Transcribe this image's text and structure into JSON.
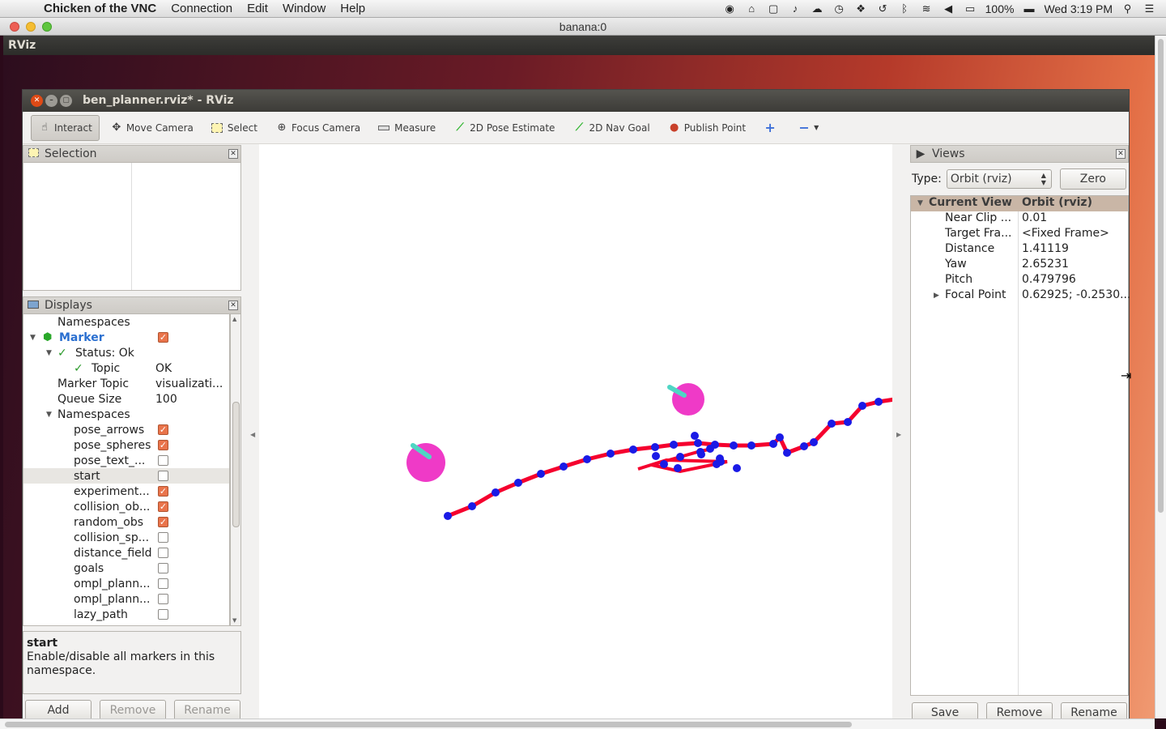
{
  "mac_menu": {
    "app_name": "Chicken of the VNC",
    "items": [
      "Connection",
      "Edit",
      "Window",
      "Help"
    ],
    "battery": "100%",
    "clock": "Wed 3:19 PM"
  },
  "vnc_window": {
    "title": "banana:0"
  },
  "desktop_panel": {
    "label": "RViz"
  },
  "rviz": {
    "title": "ben_planner.rviz* - RViz",
    "toolbar": [
      {
        "label": "Interact",
        "icon": "hand-icon",
        "active": true
      },
      {
        "label": "Move Camera",
        "icon": "move-camera-icon"
      },
      {
        "label": "Select",
        "icon": "select-icon"
      },
      {
        "label": "Focus Camera",
        "icon": "focus-camera-icon"
      },
      {
        "label": "Measure",
        "icon": "ruler-icon"
      },
      {
        "label": "2D Pose Estimate",
        "icon": "pose-estimate-icon"
      },
      {
        "label": "2D Nav Goal",
        "icon": "nav-goal-icon"
      },
      {
        "label": "Publish Point",
        "icon": "map-pin-icon"
      }
    ],
    "selection_panel": {
      "title": "Selection"
    },
    "displays_panel": {
      "title": "Displays",
      "rows": {
        "r0": {
          "name": "Namespaces"
        },
        "r1": {
          "name": "Marker"
        },
        "r2": {
          "name": "Status: Ok"
        },
        "r3": {
          "name": "Topic",
          "value": "OK"
        },
        "r4": {
          "name": "Marker Topic",
          "value": "visualizati..."
        },
        "r5": {
          "name": "Queue Size",
          "value": "100"
        },
        "r6": {
          "name": "Namespaces"
        },
        "r7": {
          "name": "pose_arrows"
        },
        "r8": {
          "name": "pose_spheres"
        },
        "r9": {
          "name": "pose_text_..."
        },
        "r10": {
          "name": "start"
        },
        "r11": {
          "name": "experiment..."
        },
        "r12": {
          "name": "collision_ob..."
        },
        "r13": {
          "name": "random_obs"
        },
        "r14": {
          "name": "collision_sp..."
        },
        "r15": {
          "name": "distance_field"
        },
        "r16": {
          "name": "goals"
        },
        "r17": {
          "name": "ompl_plann..."
        },
        "r18": {
          "name": "ompl_plann..."
        },
        "r19": {
          "name": "lazy_path"
        }
      },
      "buttons": {
        "add": "Add",
        "remove": "Remove",
        "rename": "Rename"
      }
    },
    "help": {
      "title": "start",
      "text": "Enable/disable all markers in this namespace."
    },
    "views_panel": {
      "title": "Views",
      "type_label": "Type:",
      "type_value": "Orbit (rviz)",
      "zero": "Zero",
      "header": {
        "name": "Current View",
        "value": "Orbit (rviz)"
      },
      "props": {
        "p0": {
          "name": "Near Clip ...",
          "value": "0.01"
        },
        "p1": {
          "name": "Target Fra...",
          "value": "<Fixed Frame>"
        },
        "p2": {
          "name": "Distance",
          "value": "1.41119"
        },
        "p3": {
          "name": "Yaw",
          "value": "2.65231"
        },
        "p4": {
          "name": "Pitch",
          "value": "0.479796"
        },
        "p5": {
          "name": "Focal Point",
          "value": "0.62925; -0.2530..."
        }
      },
      "buttons": {
        "save": "Save",
        "remove": "Remove",
        "rename": "Rename"
      }
    }
  },
  "colors": {
    "path": "#f5002e",
    "nodes": "#1a1ae6",
    "spheres": "#ee2fc4",
    "arrow": "#4fd6c4",
    "checkbox_on": "#e9744b"
  }
}
